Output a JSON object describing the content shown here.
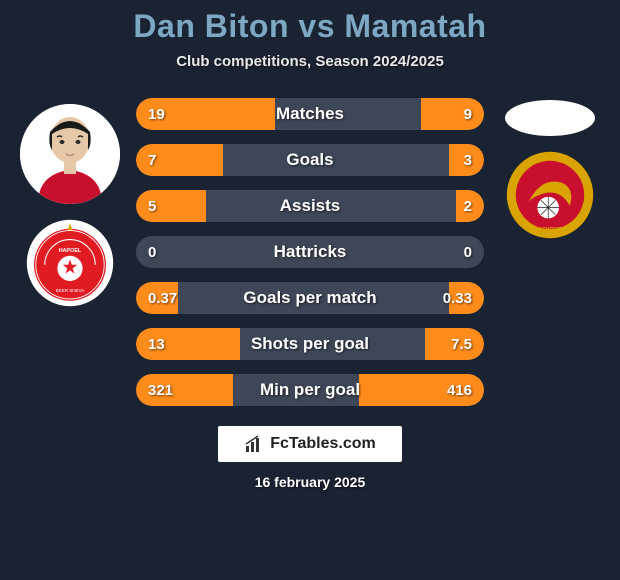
{
  "title": "Dan Biton vs Mamatah",
  "subtitle": "Club competitions, Season 2024/2025",
  "date": "16 february 2025",
  "brand": "FcTables.com",
  "colors": {
    "background": "#1a2332",
    "title": "#7da8c4",
    "bar_track": "#3d4757",
    "bar_fill": "#ff8c1a",
    "text": "#ffffff"
  },
  "player_left": {
    "name": "Dan Biton",
    "club_primary": "#e11b22",
    "club_secondary": "#ffffff"
  },
  "player_right": {
    "name": "Mamatah",
    "club_primary": "#d9a400",
    "club_secondary": "#c8102e"
  },
  "stats": [
    {
      "label": "Matches",
      "left_val": "19",
      "right_val": "9",
      "left_pct": 40,
      "right_pct": 18
    },
    {
      "label": "Goals",
      "left_val": "7",
      "right_val": "3",
      "left_pct": 25,
      "right_pct": 10
    },
    {
      "label": "Assists",
      "left_val": "5",
      "right_val": "2",
      "left_pct": 20,
      "right_pct": 8
    },
    {
      "label": "Hattricks",
      "left_val": "0",
      "right_val": "0",
      "left_pct": 0,
      "right_pct": 0
    },
    {
      "label": "Goals per match",
      "left_val": "0.37",
      "right_val": "0.33",
      "left_pct": 12,
      "right_pct": 10
    },
    {
      "label": "Shots per goal",
      "left_val": "13",
      "right_val": "7.5",
      "left_pct": 30,
      "right_pct": 17
    },
    {
      "label": "Min per goal",
      "left_val": "321",
      "right_val": "416",
      "left_pct": 28,
      "right_pct": 36
    }
  ]
}
